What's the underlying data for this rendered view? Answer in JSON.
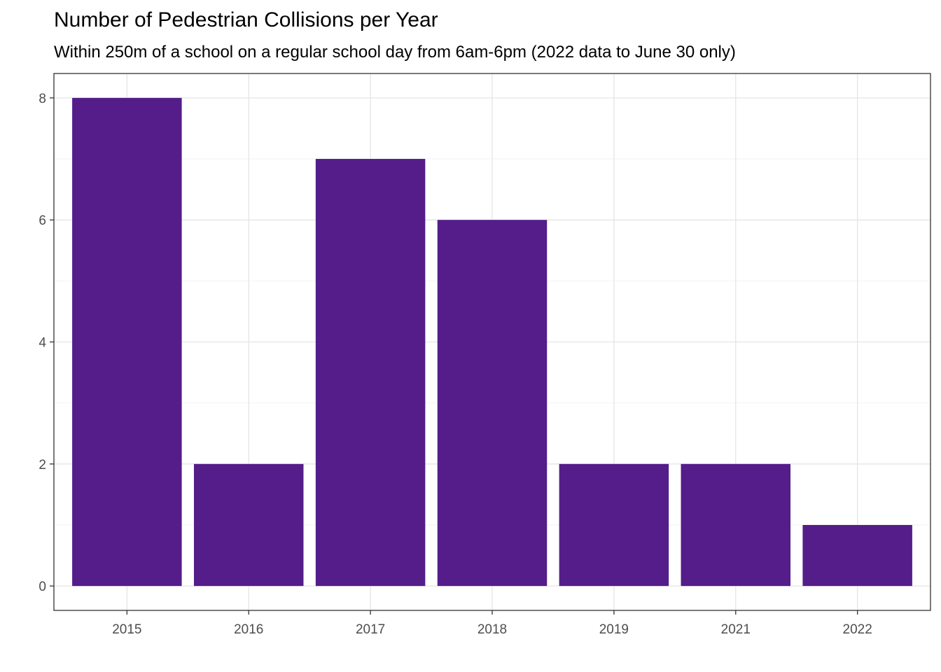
{
  "chart_data": {
    "type": "bar",
    "title": "Number of Pedestrian Collisions per Year",
    "subtitle": "Within 250m of a school on a regular school day from 6am-6pm (2022 data to June 30 only)",
    "xlabel": "",
    "ylabel": "",
    "categories": [
      "2015",
      "2016",
      "2017",
      "2018",
      "2019",
      "2021",
      "2022"
    ],
    "values": [
      8,
      2,
      7,
      6,
      2,
      2,
      1
    ],
    "ylim": [
      -0.4,
      8.4
    ],
    "yticks": [
      0,
      2,
      4,
      6,
      8
    ],
    "grid": true,
    "legend": "none",
    "bar_color": "#541d8a"
  }
}
